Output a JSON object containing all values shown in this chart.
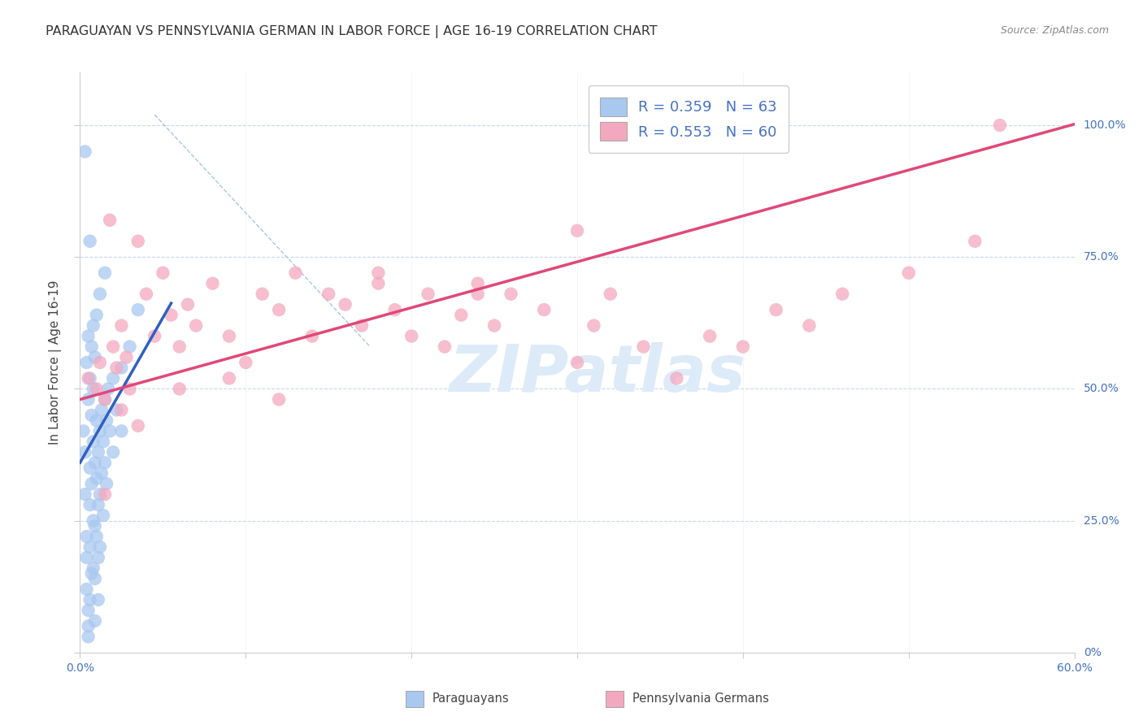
{
  "title": "PARAGUAYAN VS PENNSYLVANIA GERMAN IN LABOR FORCE | AGE 16-19 CORRELATION CHART",
  "source": "Source: ZipAtlas.com",
  "ylabel": "In Labor Force | Age 16-19",
  "xlim": [
    0.0,
    0.6
  ],
  "ylim": [
    0.0,
    1.1
  ],
  "R_blue": 0.359,
  "N_blue": 63,
  "R_pink": 0.553,
  "N_pink": 60,
  "blue_color": "#a8c8f0",
  "pink_color": "#f4a8c0",
  "blue_line_color": "#3060c0",
  "pink_line_color": "#e04878",
  "legend_label_blue": "Paraguayans",
  "legend_label_pink": "Pennsylvania Germans",
  "watermark": "ZIPatlas",
  "background_color": "#ffffff",
  "grid_color": "#c8d8ec",
  "right_tick_color": "#4472c4",
  "title_fontsize": 11.5,
  "source_fontsize": 9,
  "axis_label_fontsize": 11,
  "tick_fontsize": 10,
  "legend_fontsize": 13,
  "blue_scatter_x": [
    0.002,
    0.003,
    0.003,
    0.004,
    0.004,
    0.004,
    0.005,
    0.005,
    0.005,
    0.005,
    0.006,
    0.006,
    0.006,
    0.006,
    0.007,
    0.007,
    0.007,
    0.008,
    0.008,
    0.008,
    0.008,
    0.009,
    0.009,
    0.009,
    0.009,
    0.01,
    0.01,
    0.01,
    0.011,
    0.011,
    0.011,
    0.011,
    0.012,
    0.012,
    0.012,
    0.013,
    0.013,
    0.014,
    0.014,
    0.015,
    0.015,
    0.016,
    0.016,
    0.017,
    0.018,
    0.02,
    0.02,
    0.022,
    0.025,
    0.025,
    0.004,
    0.005,
    0.006,
    0.007,
    0.008,
    0.009,
    0.01,
    0.012,
    0.015,
    0.03,
    0.035,
    0.006,
    0.003
  ],
  "blue_scatter_y": [
    0.42,
    0.38,
    0.3,
    0.22,
    0.18,
    0.12,
    0.08,
    0.05,
    0.03,
    0.48,
    0.35,
    0.28,
    0.2,
    0.1,
    0.45,
    0.32,
    0.15,
    0.4,
    0.25,
    0.16,
    0.5,
    0.36,
    0.24,
    0.14,
    0.06,
    0.44,
    0.33,
    0.22,
    0.38,
    0.28,
    0.18,
    0.1,
    0.42,
    0.3,
    0.2,
    0.46,
    0.34,
    0.4,
    0.26,
    0.48,
    0.36,
    0.44,
    0.32,
    0.5,
    0.42,
    0.52,
    0.38,
    0.46,
    0.54,
    0.42,
    0.55,
    0.6,
    0.52,
    0.58,
    0.62,
    0.56,
    0.64,
    0.68,
    0.72,
    0.58,
    0.65,
    0.78,
    0.95
  ],
  "pink_scatter_x": [
    0.005,
    0.01,
    0.012,
    0.015,
    0.018,
    0.02,
    0.022,
    0.025,
    0.028,
    0.03,
    0.035,
    0.04,
    0.045,
    0.05,
    0.055,
    0.06,
    0.065,
    0.07,
    0.08,
    0.09,
    0.1,
    0.11,
    0.12,
    0.13,
    0.14,
    0.15,
    0.16,
    0.17,
    0.18,
    0.19,
    0.2,
    0.21,
    0.22,
    0.23,
    0.24,
    0.25,
    0.26,
    0.28,
    0.3,
    0.31,
    0.32,
    0.34,
    0.36,
    0.38,
    0.4,
    0.42,
    0.44,
    0.46,
    0.5,
    0.54,
    0.015,
    0.025,
    0.035,
    0.06,
    0.09,
    0.12,
    0.18,
    0.24,
    0.3,
    0.555
  ],
  "pink_scatter_y": [
    0.52,
    0.5,
    0.55,
    0.48,
    0.82,
    0.58,
    0.54,
    0.62,
    0.56,
    0.5,
    0.78,
    0.68,
    0.6,
    0.72,
    0.64,
    0.58,
    0.66,
    0.62,
    0.7,
    0.6,
    0.55,
    0.68,
    0.65,
    0.72,
    0.6,
    0.68,
    0.66,
    0.62,
    0.7,
    0.65,
    0.6,
    0.68,
    0.58,
    0.64,
    0.7,
    0.62,
    0.68,
    0.65,
    0.55,
    0.62,
    0.68,
    0.58,
    0.52,
    0.6,
    0.58,
    0.65,
    0.62,
    0.68,
    0.72,
    0.78,
    0.3,
    0.46,
    0.43,
    0.5,
    0.52,
    0.48,
    0.72,
    0.68,
    0.8,
    1.0
  ],
  "ref_line_x": [
    0.045,
    0.175
  ],
  "ref_line_y": [
    1.02,
    0.58
  ],
  "blue_line_x": [
    0.0,
    0.055
  ],
  "blue_line_y_start": 0.36,
  "blue_line_slope": 5.5,
  "pink_line_x": [
    0.0,
    0.6
  ],
  "pink_line_y_start": 0.48,
  "pink_line_slope": 0.87
}
